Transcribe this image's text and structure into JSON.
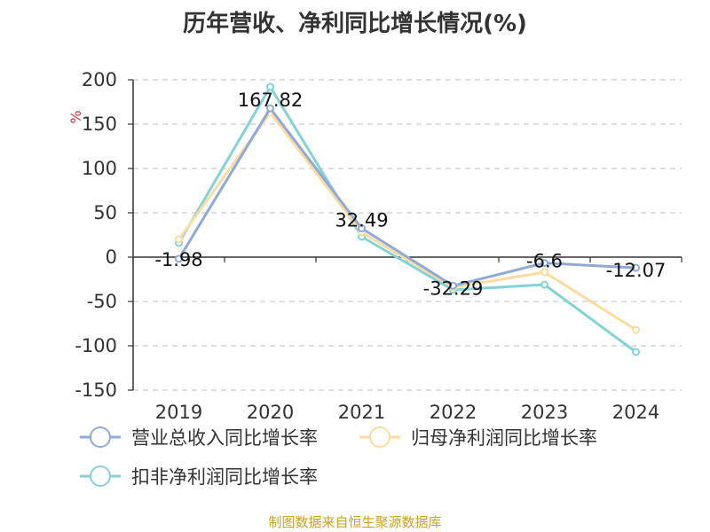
{
  "chart_data": {
    "type": "line",
    "title": "历年营收、净利同比增长情况(%)",
    "ylabel": "%",
    "xlabel": "",
    "categories": [
      "2019",
      "2020",
      "2021",
      "2022",
      "2023",
      "2024"
    ],
    "ylim": [
      -150,
      200
    ],
    "yticks": [
      -150,
      -100,
      -50,
      0,
      50,
      100,
      150,
      200
    ],
    "grid": true,
    "legend_position": "bottom",
    "series": [
      {
        "name": "营业总收入同比增长率",
        "color": "#8fa9d9",
        "values": [
          -1.98,
          167.82,
          32.49,
          -32.29,
          -6.6,
          -12.07
        ],
        "labels": [
          "-1.98",
          "167.82",
          "32.49",
          "-32.29",
          "-6.6",
          "-12.07"
        ]
      },
      {
        "name": "归母净利润同比增长率",
        "color": "#fbdb9e",
        "values": [
          20,
          163,
          28,
          -34,
          -17,
          -82
        ],
        "labels": []
      },
      {
        "name": "扣非净利润同比增长率",
        "color": "#82d3d6",
        "values": [
          16,
          192,
          23,
          -37,
          -31,
          -107
        ],
        "labels": []
      }
    ]
  },
  "source_note": "制图数据来自恒生聚源数据库"
}
